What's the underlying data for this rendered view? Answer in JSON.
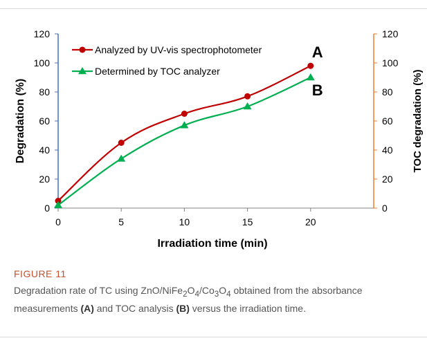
{
  "chart_data": {
    "type": "line",
    "x": [
      0,
      5,
      10,
      15,
      20
    ],
    "series": [
      {
        "name": "Analyzed by UV-vis spectrophotometer",
        "values": [
          5,
          45,
          65,
          77,
          98
        ],
        "color": "#c00000",
        "marker": "circle",
        "axis": "left",
        "tag": "A"
      },
      {
        "name": "Determined by TOC analyzer",
        "values": [
          2,
          34,
          57,
          70,
          90
        ],
        "color": "#00b050",
        "marker": "triangle",
        "axis": "right",
        "tag": "B"
      }
    ],
    "xlabel": "Irradiation time (min)",
    "ylabel": "Degradation (%)",
    "y2label": "TOC degradation (%)",
    "xticks": [
      "0",
      "5",
      "10",
      "15",
      "20"
    ],
    "yticks": [
      "0",
      "20",
      "40",
      "60",
      "80",
      "100",
      "120"
    ],
    "xlim": [
      0,
      25
    ],
    "ylim": [
      0,
      120
    ],
    "left_axis_color": "#4472c4",
    "right_axis_color": "#ed7d31",
    "legend_position": "top-left"
  },
  "caption": {
    "label": "FIGURE 11",
    "text_parts": [
      "Degradation rate of TC using ZnO/NiFe",
      "2",
      "O",
      "4",
      "/Co",
      "3",
      "O",
      "4",
      " obtained from the absorbance measurements ",
      "(A)",
      " and TOC analysis ",
      "(B)",
      " versus the irradiation time."
    ]
  }
}
